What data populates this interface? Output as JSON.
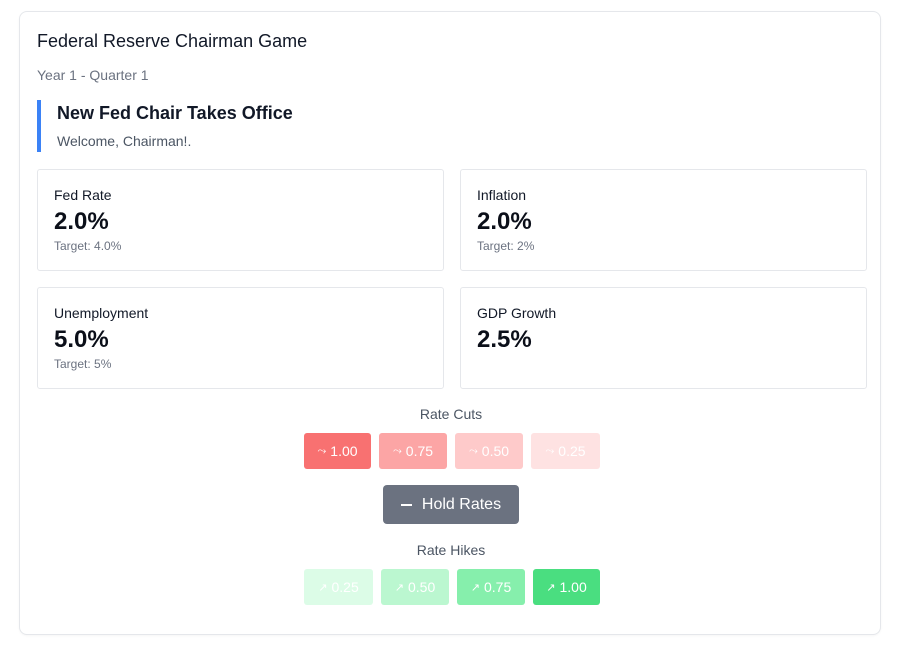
{
  "game": {
    "title": "Federal Reserve Chairman Game",
    "period": "Year 1 - Quarter 1"
  },
  "event": {
    "title": "New Fed Chair Takes Office",
    "message": "Welcome, Chairman!."
  },
  "stats": {
    "fed_rate": {
      "label": "Fed Rate",
      "value": "2.0%",
      "target": "Target: 4.0%"
    },
    "inflation": {
      "label": "Inflation",
      "value": "2.0%",
      "target": "Target: 2%"
    },
    "unemployment": {
      "label": "Unemployment",
      "value": "5.0%",
      "target": "Target: 5%"
    },
    "gdp_growth": {
      "label": "GDP Growth",
      "value": "2.5%"
    }
  },
  "controls": {
    "cuts_label": "Rate Cuts",
    "hikes_label": "Rate Hikes",
    "hold_label": "Hold Rates",
    "cuts": [
      "1.00",
      "0.75",
      "0.50",
      "0.25"
    ],
    "hikes": [
      "0.25",
      "0.50",
      "0.75",
      "1.00"
    ],
    "cut_icon": "trending-down-icon",
    "hike_icon": "trending-up-icon",
    "hold_icon": "minus-icon"
  },
  "colors": {
    "accent": "#3b82f6",
    "cut_1_00": "#f87171",
    "cut_0_75": "#fca5a5",
    "cut_0_50": "#fecaca",
    "cut_0_25": "#fee2e2",
    "hike_0_25": "#dcfce7",
    "hike_0_50": "#bbf7d0",
    "hike_0_75": "#86efac",
    "hike_1_00": "#4ade80",
    "hold": "#6b7280"
  }
}
